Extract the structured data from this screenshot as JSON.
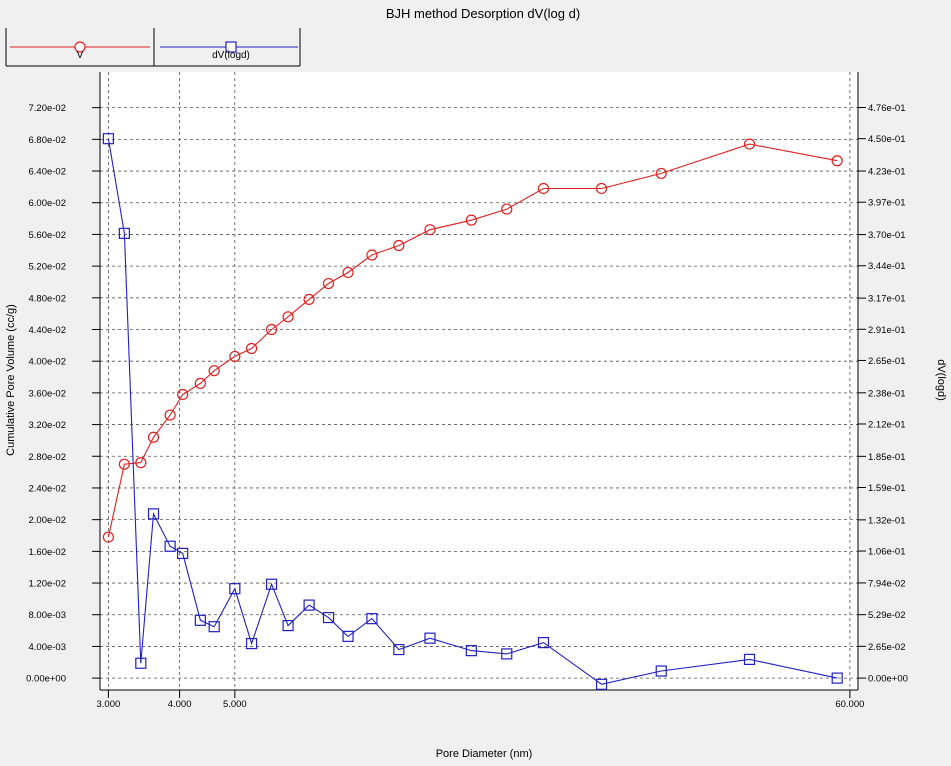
{
  "chart_data": {
    "type": "line",
    "title": "BJH method Desorption  dV(log d)",
    "xlabel": "Pore Diameter (nm)",
    "ylabel": "Cumulative Pore Volume (cc/g)",
    "y2label": "dV(logd)",
    "x_scale": "log",
    "xlim": [
      2.9,
      62
    ],
    "ylim": [
      -0.0015,
      0.0765
    ],
    "y2lim": [
      -0.00993,
      0.50563
    ],
    "x_ticks": [
      3,
      4,
      5,
      60
    ],
    "x_tick_labels": [
      "3.000",
      "4.000",
      "5.000",
      "60.000"
    ],
    "y_ticks": [
      0,
      0.004,
      0.008,
      0.012,
      0.016,
      0.02,
      0.024,
      0.028,
      0.032,
      0.036,
      0.04,
      0.044,
      0.048,
      0.052,
      0.056,
      0.06,
      0.064,
      0.068,
      0.072
    ],
    "y_tick_labels": [
      "0.00e+00",
      "4.00e-03",
      "8.00e-03",
      "1.20e-02",
      "1.60e-02",
      "2.00e-02",
      "2.40e-02",
      "2.80e-02",
      "3.20e-02",
      "3.60e-02",
      "4.00e-02",
      "4.40e-02",
      "4.80e-02",
      "5.20e-02",
      "5.60e-02",
      "6.00e-02",
      "6.40e-02",
      "6.80e-02",
      "7.20e-02"
    ],
    "y2_ticks": [
      0,
      0.0265,
      0.0529,
      0.0794,
      0.106,
      0.132,
      0.159,
      0.185,
      0.212,
      0.238,
      0.265,
      0.291,
      0.317,
      0.344,
      0.37,
      0.397,
      0.423,
      0.45,
      0.476
    ],
    "y2_tick_labels": [
      "0.00e+00",
      "2.65e-02",
      "5.29e-02",
      "7.94e-02",
      "1.06e-01",
      "1.32e-01",
      "1.59e-01",
      "1.85e-01",
      "2.12e-01",
      "2.38e-01",
      "2.65e-01",
      "2.91e-01",
      "3.17e-01",
      "3.44e-01",
      "3.70e-01",
      "3.97e-01",
      "4.23e-01",
      "4.50e-01",
      "4.76e-01"
    ],
    "grid": true,
    "legend_position": "top-left",
    "series": [
      {
        "name": "V",
        "axis": "left",
        "color": "#e02020",
        "marker": "circle",
        "x": [
          3.0,
          3.2,
          3.42,
          3.6,
          3.85,
          4.05,
          4.35,
          4.6,
          5.0,
          5.35,
          5.8,
          6.2,
          6.75,
          7.3,
          7.9,
          8.7,
          9.7,
          11.0,
          13.0,
          15.0,
          17.4,
          22.0,
          28.0,
          40.0,
          57.0
        ],
        "y": [
          0.0178,
          0.027,
          0.0272,
          0.0304,
          0.0332,
          0.0358,
          0.0372,
          0.0388,
          0.0406,
          0.0416,
          0.044,
          0.0456,
          0.0478,
          0.0498,
          0.0512,
          0.0534,
          0.0546,
          0.0566,
          0.0578,
          0.0592,
          0.0618,
          0.0618,
          0.0637,
          0.0674,
          0.0653
        ]
      },
      {
        "name": "dV(logd)",
        "axis": "right",
        "color": "#2020c0",
        "marker": "square",
        "x": [
          3.0,
          3.2,
          3.42,
          3.6,
          3.85,
          4.05,
          4.35,
          4.6,
          5.0,
          5.35,
          5.8,
          6.2,
          6.75,
          7.3,
          7.9,
          8.7,
          9.7,
          11.0,
          13.0,
          15.0,
          17.4,
          22.0,
          28.0,
          40.0,
          57.0
        ],
        "y": [
          0.45,
          0.371,
          0.0124,
          0.137,
          0.11,
          0.104,
          0.0482,
          0.0429,
          0.0746,
          0.0288,
          0.0783,
          0.0438,
          0.0609,
          0.0505,
          0.0348,
          0.0496,
          0.0238,
          0.0333,
          0.0229,
          0.0202,
          0.0296,
          -0.0052,
          0.0059,
          0.0156,
          0.0
        ]
      }
    ]
  }
}
